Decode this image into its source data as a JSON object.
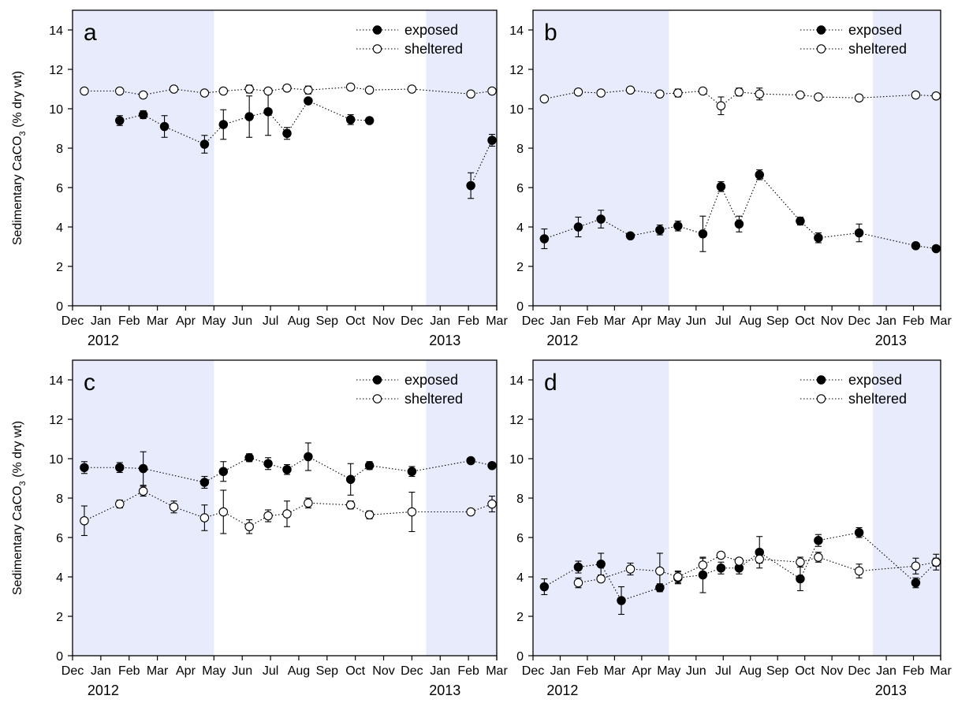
{
  "figure": {
    "ylabel_main": "Sedimentary CaCO",
    "ylabel_sub": "3",
    "ylabel_tail": " (% dry wt)",
    "legend": {
      "exposed": "exposed",
      "sheltered": "sheltered"
    },
    "month_labels": [
      "Dec",
      "Jan",
      "Feb",
      "Mar",
      "Apr",
      "May",
      "Jun",
      "Jul",
      "Aug",
      "Sep",
      "Oct",
      "Nov",
      "Dec",
      "Jan",
      "Feb",
      "Mar"
    ],
    "year_labels": [
      "2012",
      "2013"
    ],
    "shaded_periods": [
      [
        0,
        6
      ],
      [
        15,
        18
      ]
    ],
    "y_ticks": [
      0,
      2,
      4,
      6,
      8,
      10,
      12,
      14
    ],
    "colors": {
      "shade": "#e8ebfb",
      "exposed": "#000000",
      "sheltered": "#ffffff"
    }
  },
  "chart_data": [
    {
      "type": "line",
      "panel": "a",
      "xlabel": "",
      "ylabel": "Sedimentary CaCO3 (% dry wt)",
      "ylim": [
        0,
        15
      ],
      "legend_position": "top-right",
      "series": [
        {
          "name": "exposed",
          "marker": "filled",
          "points": [
            {
              "x": 2.0,
              "y": 9.4,
              "err": 0.25
            },
            {
              "x": 3.0,
              "y": 9.7,
              "err": 0.2
            },
            {
              "x": 3.9,
              "y": 9.1,
              "err": 0.55
            },
            {
              "x": 5.6,
              "y": 8.2,
              "err": 0.45
            },
            {
              "x": 6.4,
              "y": 9.2,
              "err": 0.75
            },
            {
              "x": 7.5,
              "y": 9.6,
              "err": 1.05
            },
            {
              "x": 8.3,
              "y": 9.85,
              "err": 1.2
            },
            {
              "x": 9.1,
              "y": 8.75,
              "err": 0.3
            },
            {
              "x": 10.0,
              "y": 10.4,
              "err": 0.1
            },
            {
              "x": 11.8,
              "y": 9.45,
              "err": 0.25
            },
            {
              "x": 12.6,
              "y": 9.4,
              "err": 0.15
            }
          ]
        },
        {
          "name": "exposed",
          "marker": "filled",
          "points": [
            {
              "x": 16.9,
              "y": 6.1,
              "err": 0.65
            },
            {
              "x": 17.8,
              "y": 8.4,
              "err": 0.3
            }
          ]
        },
        {
          "name": "sheltered",
          "marker": "open",
          "points": [
            {
              "x": 0.5,
              "y": 10.9,
              "err": 0.12
            },
            {
              "x": 2.0,
              "y": 10.9,
              "err": 0.15
            },
            {
              "x": 3.0,
              "y": 10.7,
              "err": 0.15
            },
            {
              "x": 4.3,
              "y": 11.0,
              "err": 0.1
            },
            {
              "x": 5.6,
              "y": 10.8,
              "err": 0.12
            },
            {
              "x": 6.4,
              "y": 10.9,
              "err": 0.1
            },
            {
              "x": 7.5,
              "y": 11.0,
              "err": 0.2
            },
            {
              "x": 8.3,
              "y": 10.9,
              "err": 0.1
            },
            {
              "x": 9.1,
              "y": 11.05,
              "err": 0.1
            },
            {
              "x": 10.0,
              "y": 10.95,
              "err": 0.2
            },
            {
              "x": 11.8,
              "y": 11.1,
              "err": 0.1
            },
            {
              "x": 12.6,
              "y": 10.95,
              "err": 0.1
            },
            {
              "x": 14.4,
              "y": 11.0,
              "err": 0.1
            },
            {
              "x": 16.9,
              "y": 10.75,
              "err": 0.12
            },
            {
              "x": 17.8,
              "y": 10.9,
              "err": 0.1
            }
          ]
        }
      ]
    },
    {
      "type": "line",
      "panel": "b",
      "xlabel": "",
      "ylabel": "",
      "ylim": [
        0,
        15
      ],
      "legend_position": "top-right",
      "series": [
        {
          "name": "exposed",
          "marker": "filled",
          "points": [
            {
              "x": 0.5,
              "y": 3.4,
              "err": 0.5
            },
            {
              "x": 2.0,
              "y": 4.0,
              "err": 0.5
            },
            {
              "x": 3.0,
              "y": 4.4,
              "err": 0.45
            },
            {
              "x": 4.3,
              "y": 3.55,
              "err": 0.1
            },
            {
              "x": 5.6,
              "y": 3.85,
              "err": 0.25
            },
            {
              "x": 6.4,
              "y": 4.05,
              "err": 0.25
            },
            {
              "x": 7.5,
              "y": 3.65,
              "err": 0.9
            },
            {
              "x": 8.3,
              "y": 6.05,
              "err": 0.25
            },
            {
              "x": 9.1,
              "y": 4.15,
              "err": 0.4
            },
            {
              "x": 10.0,
              "y": 6.65,
              "err": 0.25
            },
            {
              "x": 11.8,
              "y": 4.3,
              "err": 0.2
            },
            {
              "x": 12.6,
              "y": 3.45,
              "err": 0.25
            },
            {
              "x": 14.4,
              "y": 3.7,
              "err": 0.45
            },
            {
              "x": 16.9,
              "y": 3.05,
              "err": 0.15
            },
            {
              "x": 17.8,
              "y": 2.9,
              "err": 0.1
            }
          ]
        },
        {
          "name": "sheltered",
          "marker": "open",
          "points": [
            {
              "x": 0.5,
              "y": 10.5,
              "err": 0.1
            },
            {
              "x": 2.0,
              "y": 10.85,
              "err": 0.1
            },
            {
              "x": 3.0,
              "y": 10.8,
              "err": 0.1
            },
            {
              "x": 4.3,
              "y": 10.95,
              "err": 0.1
            },
            {
              "x": 5.6,
              "y": 10.75,
              "err": 0.12
            },
            {
              "x": 6.4,
              "y": 10.8,
              "err": 0.2
            },
            {
              "x": 7.5,
              "y": 10.9,
              "err": 0.1
            },
            {
              "x": 8.3,
              "y": 10.15,
              "err": 0.45
            },
            {
              "x": 9.1,
              "y": 10.85,
              "err": 0.2
            },
            {
              "x": 10.0,
              "y": 10.75,
              "err": 0.3
            },
            {
              "x": 11.8,
              "y": 10.7,
              "err": 0.1
            },
            {
              "x": 12.6,
              "y": 10.6,
              "err": 0.1
            },
            {
              "x": 14.4,
              "y": 10.55,
              "err": 0.1
            },
            {
              "x": 16.9,
              "y": 10.7,
              "err": 0.15
            },
            {
              "x": 17.8,
              "y": 10.65,
              "err": 0.1
            }
          ]
        }
      ]
    },
    {
      "type": "line",
      "panel": "c",
      "xlabel": "",
      "ylabel": "Sedimentary CaCO3 (% dry wt)",
      "ylim": [
        0,
        15
      ],
      "legend_position": "top-right",
      "series": [
        {
          "name": "exposed",
          "marker": "filled",
          "points": [
            {
              "x": 0.5,
              "y": 9.55,
              "err": 0.3
            },
            {
              "x": 2.0,
              "y": 9.55,
              "err": 0.25
            },
            {
              "x": 3.0,
              "y": 9.5,
              "err": 0.85
            },
            {
              "x": 5.6,
              "y": 8.8,
              "err": 0.3
            },
            {
              "x": 6.4,
              "y": 9.35,
              "err": 0.5
            },
            {
              "x": 7.5,
              "y": 10.05,
              "err": 0.2
            },
            {
              "x": 8.3,
              "y": 9.75,
              "err": 0.3
            },
            {
              "x": 9.1,
              "y": 9.45,
              "err": 0.25
            },
            {
              "x": 10.0,
              "y": 10.1,
              "err": 0.7
            },
            {
              "x": 11.8,
              "y": 8.95,
              "err": 0.8
            },
            {
              "x": 12.6,
              "y": 9.65,
              "err": 0.2
            },
            {
              "x": 14.4,
              "y": 9.35,
              "err": 0.25
            },
            {
              "x": 16.9,
              "y": 9.9,
              "err": 0.1
            },
            {
              "x": 17.8,
              "y": 9.65,
              "err": 0.15
            }
          ]
        },
        {
          "name": "sheltered",
          "marker": "open",
          "points": [
            {
              "x": 0.5,
              "y": 6.85,
              "err": 0.75
            },
            {
              "x": 2.0,
              "y": 7.7,
              "err": 0.2
            },
            {
              "x": 3.0,
              "y": 8.35,
              "err": 0.25
            },
            {
              "x": 4.3,
              "y": 7.55,
              "err": 0.3
            },
            {
              "x": 5.6,
              "y": 7.0,
              "err": 0.65
            },
            {
              "x": 6.4,
              "y": 7.3,
              "err": 1.1
            },
            {
              "x": 7.5,
              "y": 6.55,
              "err": 0.35
            },
            {
              "x": 8.3,
              "y": 7.1,
              "err": 0.3
            },
            {
              "x": 9.1,
              "y": 7.2,
              "err": 0.65
            },
            {
              "x": 10.0,
              "y": 7.75,
              "err": 0.25
            },
            {
              "x": 11.8,
              "y": 7.65,
              "err": 0.2
            },
            {
              "x": 12.6,
              "y": 7.15,
              "err": 0.2
            },
            {
              "x": 14.4,
              "y": 7.3,
              "err": 1.0
            },
            {
              "x": 16.9,
              "y": 7.3,
              "err": 0.1
            },
            {
              "x": 17.8,
              "y": 7.7,
              "err": 0.4
            }
          ]
        }
      ]
    },
    {
      "type": "line",
      "panel": "d",
      "xlabel": "",
      "ylabel": "",
      "ylim": [
        0,
        15
      ],
      "legend_position": "top-right",
      "series": [
        {
          "name": "exposed",
          "marker": "filled",
          "points": [
            {
              "x": 0.5,
              "y": 3.5,
              "err": 0.4
            },
            {
              "x": 2.0,
              "y": 4.5,
              "err": 0.3
            },
            {
              "x": 3.0,
              "y": 4.65,
              "err": 0.55
            },
            {
              "x": 3.9,
              "y": 2.8,
              "err": 0.7
            },
            {
              "x": 5.6,
              "y": 3.45,
              "err": 0.2
            },
            {
              "x": 6.4,
              "y": 3.95,
              "err": 0.3
            },
            {
              "x": 7.5,
              "y": 4.1,
              "err": 0.9
            },
            {
              "x": 8.3,
              "y": 4.45,
              "err": 0.3
            },
            {
              "x": 9.1,
              "y": 4.45,
              "err": 0.3
            },
            {
              "x": 10.0,
              "y": 5.25,
              "err": 0.8
            },
            {
              "x": 11.8,
              "y": 3.9,
              "err": 0.6
            },
            {
              "x": 12.6,
              "y": 5.85,
              "err": 0.3
            },
            {
              "x": 14.4,
              "y": 6.25,
              "err": 0.25
            },
            {
              "x": 16.9,
              "y": 3.7,
              "err": 0.25
            },
            {
              "x": 17.8,
              "y": 4.75,
              "err": 0.4
            }
          ]
        },
        {
          "name": "sheltered",
          "marker": "open",
          "points": [
            {
              "x": 2.0,
              "y": 3.7,
              "err": 0.25
            },
            {
              "x": 3.0,
              "y": 3.9,
              "err": 0.15
            },
            {
              "x": 4.3,
              "y": 4.4,
              "err": 0.3
            },
            {
              "x": 5.6,
              "y": 4.3,
              "err": 0.9
            },
            {
              "x": 6.4,
              "y": 4.0,
              "err": 0.3
            },
            {
              "x": 7.5,
              "y": 4.6,
              "err": 0.35
            },
            {
              "x": 8.3,
              "y": 5.1,
              "err": 0.1
            },
            {
              "x": 9.1,
              "y": 4.8,
              "err": 0.15
            },
            {
              "x": 10.0,
              "y": 4.9,
              "err": 0.2
            },
            {
              "x": 11.8,
              "y": 4.75,
              "err": 0.25
            },
            {
              "x": 12.6,
              "y": 5.0,
              "err": 0.25
            },
            {
              "x": 14.4,
              "y": 4.3,
              "err": 0.35
            },
            {
              "x": 16.9,
              "y": 4.55,
              "err": 0.4
            },
            {
              "x": 17.8,
              "y": 4.75,
              "err": 0.2
            }
          ]
        }
      ]
    }
  ]
}
